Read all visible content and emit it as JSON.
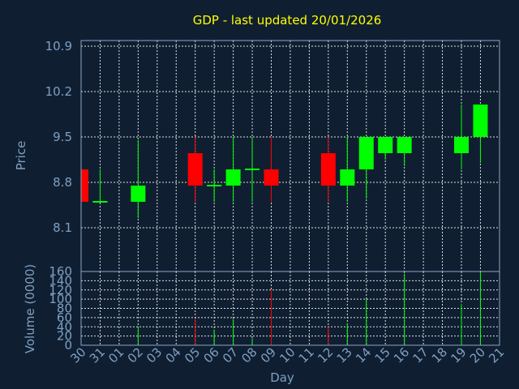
{
  "chart_data": {
    "type": "candlestick",
    "title": "GDP - last updated 20/01/2026",
    "xlabel": "Day",
    "price_panel": {
      "ylabel": "Price",
      "ylim": [
        7.85,
        11.0
      ],
      "yticks": [
        "8.1",
        "8.8",
        "9.5",
        "10.2",
        "10.9"
      ],
      "grid": true
    },
    "volume_panel": {
      "ylabel": "Volume (0000)",
      "ylim": [
        0,
        160
      ],
      "yticks": [
        "0",
        "20",
        "40",
        "60",
        "80",
        "100",
        "120",
        "140",
        "160"
      ],
      "grid": true
    },
    "x_ticks": [
      "30",
      "31",
      "01",
      "02",
      "03",
      "04",
      "05",
      "06",
      "07",
      "08",
      "09",
      "10",
      "11",
      "12",
      "13",
      "14",
      "15",
      "16",
      "17",
      "18",
      "19",
      "20",
      "21"
    ],
    "candles": [
      {
        "day": "30",
        "open": 9.0,
        "high": 9.0,
        "low": 8.5,
        "close": 8.5
      },
      {
        "day": "31",
        "open": 8.5,
        "high": 9.0,
        "low": 8.5,
        "close": 8.5
      },
      {
        "day": "02",
        "open": 8.5,
        "high": 9.45,
        "low": 8.25,
        "close": 8.75
      },
      {
        "day": "05",
        "open": 9.25,
        "high": 9.5,
        "low": 8.5,
        "close": 8.75
      },
      {
        "day": "06",
        "open": 8.75,
        "high": 9.0,
        "low": 8.5,
        "close": 8.75
      },
      {
        "day": "07",
        "open": 8.75,
        "high": 9.5,
        "low": 8.5,
        "close": 9.0
      },
      {
        "day": "08",
        "open": 9.0,
        "high": 9.5,
        "low": 8.5,
        "close": 9.0
      },
      {
        "day": "09",
        "open": 9.0,
        "high": 9.5,
        "low": 8.5,
        "close": 8.75
      },
      {
        "day": "12",
        "open": 9.25,
        "high": 9.5,
        "low": 8.5,
        "close": 8.75
      },
      {
        "day": "13",
        "open": 8.75,
        "high": 9.5,
        "low": 8.5,
        "close": 9.0
      },
      {
        "day": "14",
        "open": 9.0,
        "high": 9.5,
        "low": 8.55,
        "close": 9.5
      },
      {
        "day": "15",
        "open": 9.25,
        "high": 9.5,
        "low": 9.15,
        "close": 9.5
      },
      {
        "day": "16",
        "open": 9.25,
        "high": 9.5,
        "low": 9.05,
        "close": 9.5
      },
      {
        "day": "19",
        "open": 9.25,
        "high": 10.0,
        "low": 9.0,
        "close": 9.5
      },
      {
        "day": "20",
        "open": 9.5,
        "high": 10.0,
        "low": 9.1,
        "close": 10.0
      }
    ],
    "volumes": [
      {
        "day": "02",
        "volume": 40
      },
      {
        "day": "05",
        "volume": 57
      },
      {
        "day": "06",
        "volume": 33
      },
      {
        "day": "07",
        "volume": 57
      },
      {
        "day": "08",
        "volume": 15
      },
      {
        "day": "09",
        "volume": 120
      },
      {
        "day": "12",
        "volume": 40
      },
      {
        "day": "13",
        "volume": 48
      },
      {
        "day": "14",
        "volume": 100
      },
      {
        "day": "16",
        "volume": 155
      },
      {
        "day": "19",
        "volume": 90
      },
      {
        "day": "20",
        "volume": 160
      }
    ],
    "colors": {
      "up": "#00ff00",
      "down": "#ff0000",
      "background": "#0f1f31",
      "title": "#ffff00",
      "text": "#7f9fc2"
    }
  }
}
